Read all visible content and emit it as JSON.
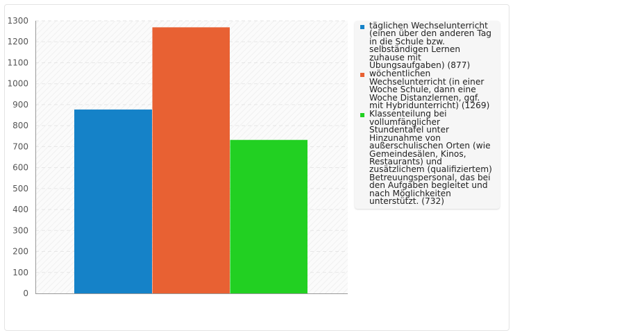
{
  "chart_data": {
    "type": "bar",
    "ylim": [
      0,
      1300
    ],
    "ytick_step": 100,
    "grid": true,
    "legend_position": "right",
    "series": [
      {
        "name": "täglichen Wechselunterricht (einen über den anderen Tag in die Schule bzw. selbständigen Lernen zuhause mit Übungsaufgaben) (877)",
        "value": 877,
        "color": "#1582c8"
      },
      {
        "name": "wöchentlichen Wechselunterricht (in einer Woche Schule, dann eine Woche Distanzlernen, ggf. mit Hybridunterricht) (1269)",
        "value": 1269,
        "color": "#e86133"
      },
      {
        "name": "Klassenteilung bei vollumfänglicher Stundentafel unter Hinzunahme von außerschulischen Orten (wie Gemeindesälen, Kinos, Restaurants) und zusätzlichem (qualifiziertem) Betreuungspersonal, das bei den Aufgaben begleitet und nach Möglichkeiten unterstützt. (732)",
        "value": 732,
        "color": "#22d022"
      }
    ]
  }
}
